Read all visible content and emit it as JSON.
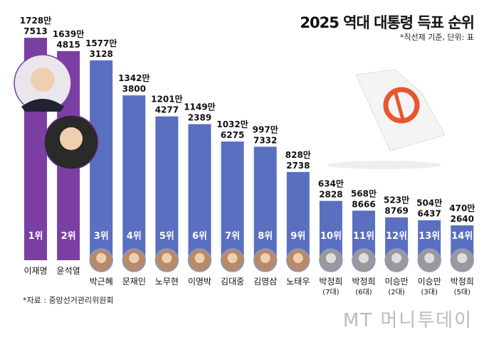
{
  "title": "2025 역대 대통령 득표 순위",
  "note": "*직선제 기준, 단위: 표",
  "source": "*자료 : 중앙선거관리위원회",
  "logo": "MT 머니투데이",
  "colors": {
    "highlight": "#7b3fa3",
    "bar": "#5a6fc0",
    "ballot_mark": "#e8552f"
  },
  "chart_data": {
    "type": "bar",
    "title": "2025 역대 대통령 득표 순위",
    "unit": "표",
    "categories": [
      "이재명",
      "윤석열",
      "박근혜",
      "문재인",
      "노무현",
      "이명박",
      "김대중",
      "김영삼",
      "노태우",
      "박정희",
      "박정희",
      "이승만",
      "이승만",
      "박정희"
    ],
    "term_notes": [
      "",
      "",
      "",
      "",
      "",
      "",
      "",
      "",
      "",
      "(7대)",
      "(6대)",
      "(2대)",
      "(3대)",
      "(5대)"
    ],
    "ranks": [
      "1위",
      "2위",
      "3위",
      "4위",
      "5위",
      "6위",
      "7위",
      "8위",
      "9위",
      "10위",
      "11위",
      "12위",
      "13위",
      "14위"
    ],
    "label_top": [
      "1728만",
      "1639만",
      "1577만",
      "1342만",
      "1201만",
      "1149만",
      "1032만",
      "997만",
      "828만",
      "634만",
      "568만",
      "523만",
      "504만",
      "470만"
    ],
    "label_bottom": [
      "7513",
      "4815",
      "3128",
      "3800",
      "4277",
      "2389",
      "6275",
      "7332",
      "2738",
      "2828",
      "8666",
      "8769",
      "6437",
      "2640"
    ],
    "values": [
      17287513,
      16394815,
      15773128,
      13423800,
      12014277,
      11492389,
      10326275,
      9977332,
      8282738,
      6342828,
      5688666,
      5238769,
      5046437,
      4702640
    ],
    "highlighted": [
      0,
      1
    ]
  }
}
